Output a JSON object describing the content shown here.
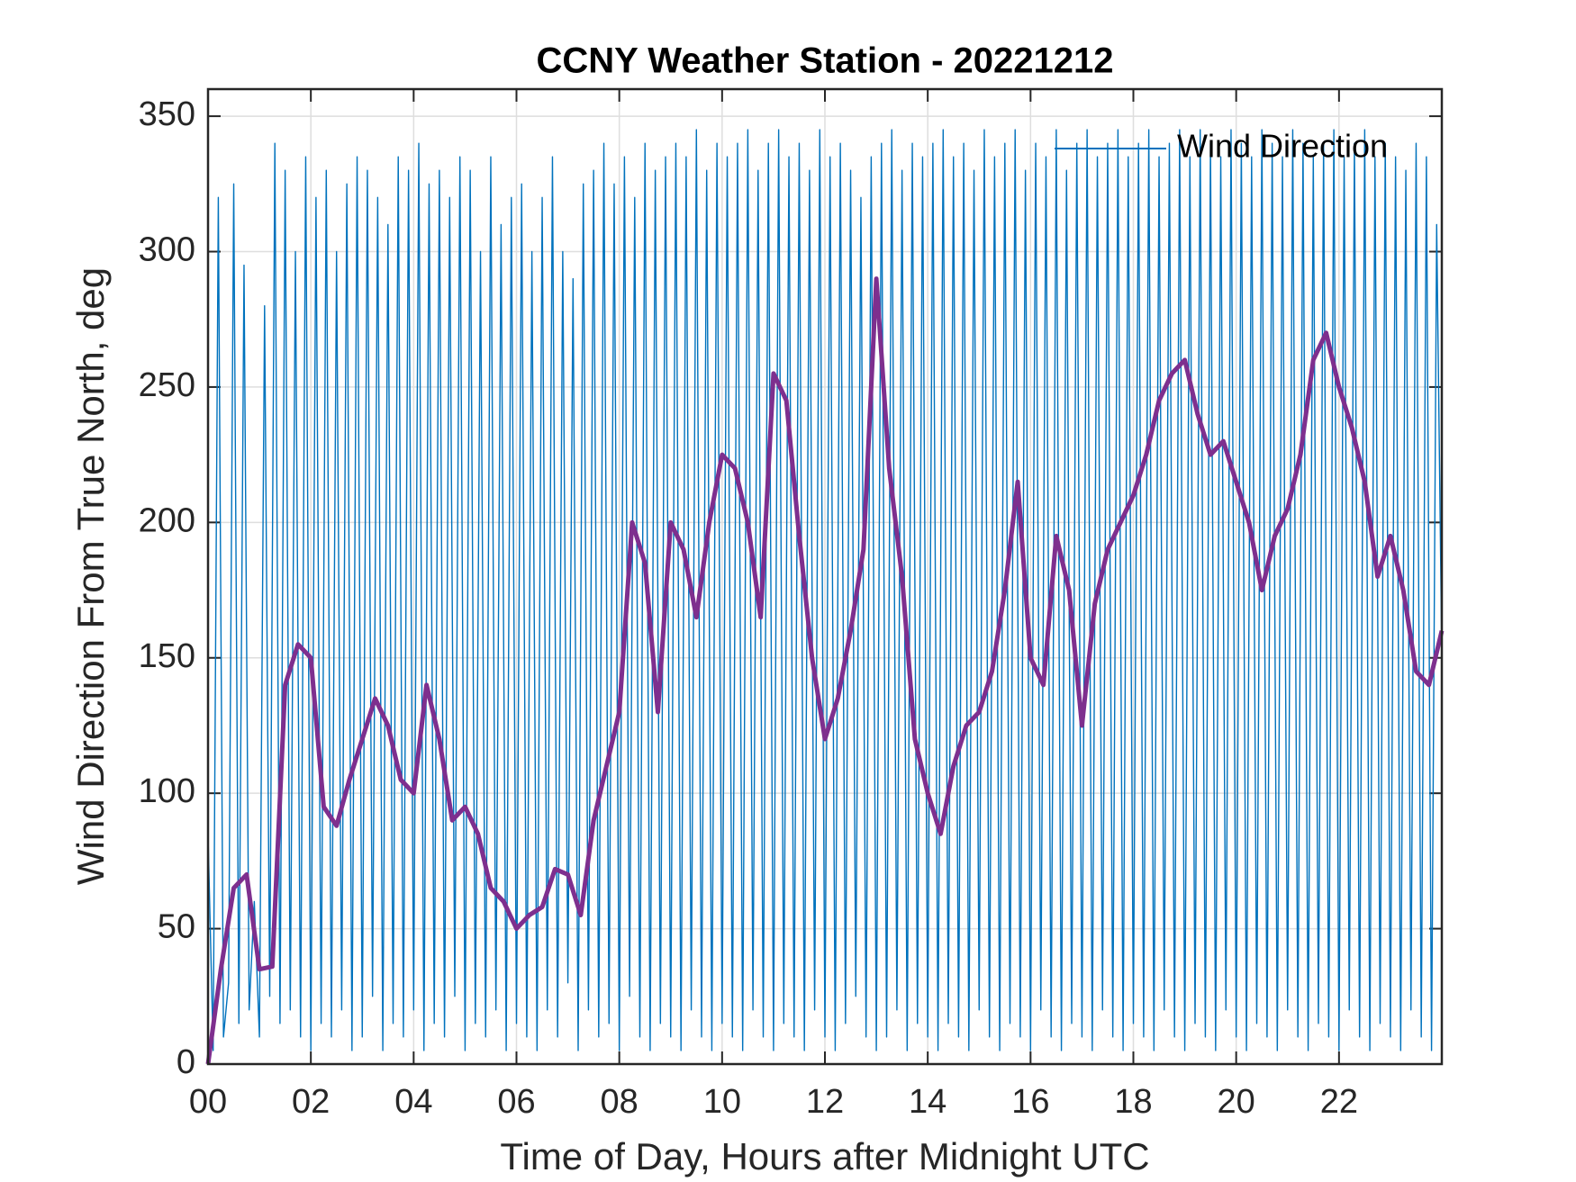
{
  "chart_data": {
    "type": "line",
    "title": "CCNY Weather Station - 20221212",
    "xlabel": "Time of Day, Hours after Midnight UTC",
    "ylabel": "Wind Direction From True North, deg",
    "xlim": [
      0,
      24
    ],
    "ylim": [
      0,
      360
    ],
    "xticks": [
      {
        "value": 0,
        "label": "00"
      },
      {
        "value": 2,
        "label": "02"
      },
      {
        "value": 4,
        "label": "04"
      },
      {
        "value": 6,
        "label": "06"
      },
      {
        "value": 8,
        "label": "08"
      },
      {
        "value": 10,
        "label": "10"
      },
      {
        "value": 12,
        "label": "12"
      },
      {
        "value": 14,
        "label": "14"
      },
      {
        "value": 16,
        "label": "16"
      },
      {
        "value": 18,
        "label": "18"
      },
      {
        "value": 20,
        "label": "20"
      },
      {
        "value": 22,
        "label": "22"
      }
    ],
    "yticks": [
      0,
      50,
      100,
      150,
      200,
      250,
      300,
      350
    ],
    "grid": true,
    "legend": "upper right",
    "series": [
      {
        "name": "Wind Direction",
        "color": "#0072bd",
        "x": [
          0,
          0.1,
          0.2,
          0.3,
          0.4,
          0.5,
          0.6,
          0.7,
          0.8,
          0.9,
          1,
          1.1,
          1.2,
          1.3,
          1.4,
          1.5,
          1.6,
          1.7,
          1.8,
          1.9,
          2,
          2.1,
          2.2,
          2.3,
          2.4,
          2.5,
          2.6,
          2.7,
          2.8,
          2.9,
          3,
          3.1,
          3.2,
          3.3,
          3.4,
          3.5,
          3.6,
          3.7,
          3.8,
          3.9,
          4,
          4.1,
          4.2,
          4.3,
          4.4,
          4.5,
          4.6,
          4.7,
          4.8,
          4.9,
          5,
          5.1,
          5.2,
          5.3,
          5.4,
          5.5,
          5.6,
          5.7,
          5.8,
          5.9,
          6,
          6.1,
          6.2,
          6.3,
          6.4,
          6.5,
          6.6,
          6.7,
          6.8,
          6.9,
          7,
          7.1,
          7.2,
          7.3,
          7.4,
          7.5,
          7.6,
          7.7,
          7.8,
          7.9,
          8,
          8.1,
          8.2,
          8.3,
          8.4,
          8.5,
          8.6,
          8.7,
          8.8,
          8.9,
          9,
          9.1,
          9.2,
          9.3,
          9.4,
          9.5,
          9.6,
          9.7,
          9.8,
          9.9,
          10,
          10.1,
          10.2,
          10.3,
          10.4,
          10.5,
          10.6,
          10.7,
          10.8,
          10.9,
          11,
          11.1,
          11.2,
          11.3,
          11.4,
          11.5,
          11.6,
          11.7,
          11.8,
          11.9,
          12,
          12.1,
          12.2,
          12.3,
          12.4,
          12.5,
          12.6,
          12.7,
          12.8,
          12.9,
          13,
          13.1,
          13.2,
          13.3,
          13.4,
          13.5,
          13.6,
          13.7,
          13.8,
          13.9,
          14,
          14.1,
          14.2,
          14.3,
          14.4,
          14.5,
          14.6,
          14.7,
          14.8,
          14.9,
          15,
          15.1,
          15.2,
          15.3,
          15.4,
          15.5,
          15.6,
          15.7,
          15.8,
          15.9,
          16,
          16.1,
          16.2,
          16.3,
          16.4,
          16.5,
          16.6,
          16.7,
          16.8,
          16.9,
          17,
          17.1,
          17.2,
          17.3,
          17.4,
          17.5,
          17.6,
          17.7,
          17.8,
          17.9,
          18,
          18.1,
          18.2,
          18.3,
          18.4,
          18.5,
          18.6,
          18.7,
          18.8,
          18.9,
          19,
          19.1,
          19.2,
          19.3,
          19.4,
          19.5,
          19.6,
          19.7,
          19.8,
          19.9,
          20,
          20.1,
          20.2,
          20.3,
          20.4,
          20.5,
          20.6,
          20.7,
          20.8,
          20.9,
          21,
          21.1,
          21.2,
          21.3,
          21.4,
          21.5,
          21.6,
          21.7,
          21.8,
          21.9,
          22,
          22.1,
          22.2,
          22.3,
          22.4,
          22.5,
          22.6,
          22.7,
          22.8,
          22.9,
          23,
          23.1,
          23.2,
          23.3,
          23.4,
          23.5,
          23.6,
          23.7,
          23.8,
          23.9,
          24
        ],
        "values": [
          85,
          5,
          320,
          10,
          30,
          325,
          15,
          295,
          20,
          60,
          10,
          280,
          25,
          340,
          15,
          330,
          20,
          300,
          10,
          335,
          5,
          320,
          15,
          330,
          10,
          300,
          20,
          325,
          5,
          335,
          10,
          330,
          25,
          320,
          5,
          310,
          15,
          335,
          10,
          330,
          20,
          340,
          5,
          325,
          15,
          330,
          10,
          320,
          25,
          335,
          5,
          330,
          15,
          300,
          10,
          335,
          20,
          310,
          5,
          320,
          15,
          325,
          10,
          300,
          5,
          320,
          20,
          335,
          10,
          300,
          30,
          290,
          5,
          325,
          20,
          330,
          10,
          340,
          15,
          325,
          5,
          335,
          25,
          320,
          10,
          340,
          5,
          330,
          15,
          335,
          10,
          340,
          5,
          335,
          20,
          345,
          10,
          330,
          5,
          340,
          15,
          335,
          10,
          340,
          5,
          345,
          20,
          330,
          10,
          340,
          5,
          345,
          15,
          335,
          10,
          340,
          5,
          330,
          20,
          345,
          10,
          335,
          5,
          340,
          15,
          330,
          25,
          320,
          10,
          335,
          5,
          340,
          10,
          345,
          20,
          330,
          5,
          340,
          15,
          335,
          10,
          340,
          5,
          345,
          15,
          335,
          10,
          340,
          5,
          330,
          20,
          345,
          10,
          335,
          5,
          340,
          15,
          345,
          10,
          330,
          5,
          340,
          20,
          335,
          10,
          345,
          5,
          330,
          15,
          340,
          10,
          345,
          5,
          335,
          20,
          340,
          10,
          345,
          5,
          335,
          15,
          340,
          10,
          345,
          5,
          335,
          20,
          340,
          10,
          345,
          5,
          335,
          15,
          345,
          10,
          340,
          5,
          335,
          20,
          345,
          10,
          340,
          5,
          335,
          15,
          345,
          10,
          340,
          5,
          335,
          20,
          345,
          10,
          340,
          5,
          335,
          15,
          340,
          10,
          345,
          5,
          335,
          20,
          340,
          10,
          345,
          5,
          335,
          15,
          340,
          10,
          335,
          5,
          330,
          20,
          340,
          10,
          335,
          5,
          310,
          150
        ]
      },
      {
        "color": "#7e2f8e",
        "x": [
          0,
          0.25,
          0.5,
          0.75,
          1,
          1.25,
          1.5,
          1.75,
          2,
          2.25,
          2.5,
          2.75,
          3,
          3.25,
          3.5,
          3.75,
          4,
          4.25,
          4.5,
          4.75,
          5,
          5.25,
          5.5,
          5.75,
          6,
          6.25,
          6.5,
          6.75,
          7,
          7.25,
          7.5,
          7.75,
          8,
          8.25,
          8.5,
          8.75,
          9,
          9.25,
          9.5,
          9.75,
          10,
          10.25,
          10.5,
          10.75,
          11,
          11.25,
          11.5,
          11.75,
          12,
          12.25,
          12.5,
          12.75,
          13,
          13.25,
          13.5,
          13.75,
          14,
          14.25,
          14.5,
          14.75,
          15,
          15.25,
          15.5,
          15.75,
          16,
          16.25,
          16.5,
          16.75,
          17,
          17.25,
          17.5,
          17.75,
          18,
          18.25,
          18.5,
          18.75,
          19,
          19.25,
          19.5,
          19.75,
          20,
          20.25,
          20.5,
          20.75,
          21,
          21.25,
          21.5,
          21.75,
          22,
          22.25,
          22.5,
          22.75,
          23,
          23.25,
          23.5,
          23.75,
          24
        ],
        "values": [
          0,
          35,
          65,
          70,
          35,
          36,
          140,
          155,
          150,
          95,
          88,
          105,
          120,
          135,
          125,
          105,
          100,
          140,
          120,
          90,
          95,
          85,
          65,
          60,
          50,
          55,
          58,
          72,
          70,
          55,
          90,
          110,
          130,
          200,
          185,
          130,
          200,
          190,
          165,
          200,
          225,
          220,
          200,
          165,
          255,
          245,
          195,
          150,
          120,
          135,
          160,
          190,
          290,
          220,
          180,
          120,
          100,
          85,
          110,
          125,
          130,
          145,
          175,
          215,
          150,
          140,
          195,
          175,
          125,
          170,
          190,
          200,
          210,
          225,
          245,
          255,
          260,
          240,
          225,
          230,
          215,
          200,
          175,
          195,
          205,
          225,
          260,
          270,
          250,
          235,
          215,
          180,
          195,
          175,
          145,
          140,
          160
        ]
      }
    ]
  }
}
